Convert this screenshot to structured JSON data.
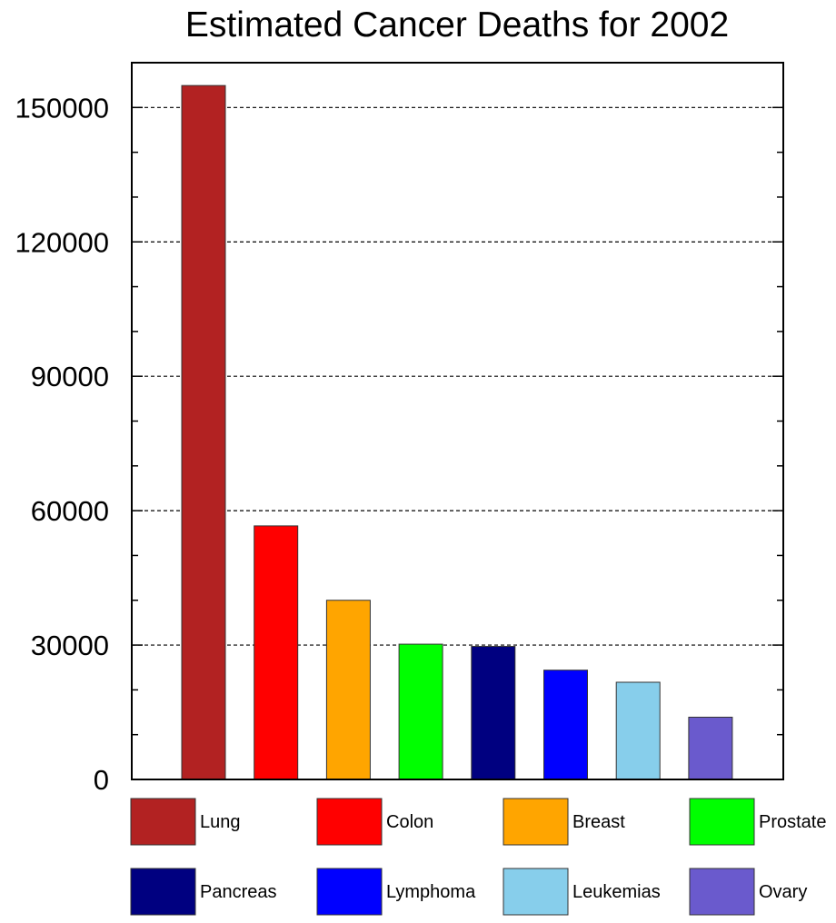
{
  "chart_data": {
    "type": "bar",
    "title": "Estimated Cancer Deaths for 2002",
    "xlabel": "",
    "ylabel": "",
    "categories": [
      "Lung",
      "Colon",
      "Breast",
      "Prostate",
      "Pancreas",
      "Lymphoma",
      "Leukemias",
      "Ovary"
    ],
    "values": [
      154900,
      56600,
      40000,
      30200,
      29700,
      24400,
      21700,
      13900
    ],
    "colors": [
      "#b22222",
      "#ff0000",
      "#ffa500",
      "#00ff00",
      "#000080",
      "#0000ff",
      "#87ceeb",
      "#6a5acd"
    ],
    "ylim": [
      0,
      160000
    ],
    "yticks": [
      0,
      30000,
      60000,
      90000,
      120000,
      150000
    ],
    "ytick_labels": [
      "0",
      "30000",
      "60000",
      "90000",
      "120000",
      "150000"
    ],
    "grid": "horizontal dashed at major ticks",
    "legend": {
      "placement": "bottom",
      "entries": [
        "Lung",
        "Colon",
        "Breast",
        "Prostate",
        "Pancreas",
        "Lymphoma",
        "Leukemias",
        "Ovary"
      ]
    }
  }
}
